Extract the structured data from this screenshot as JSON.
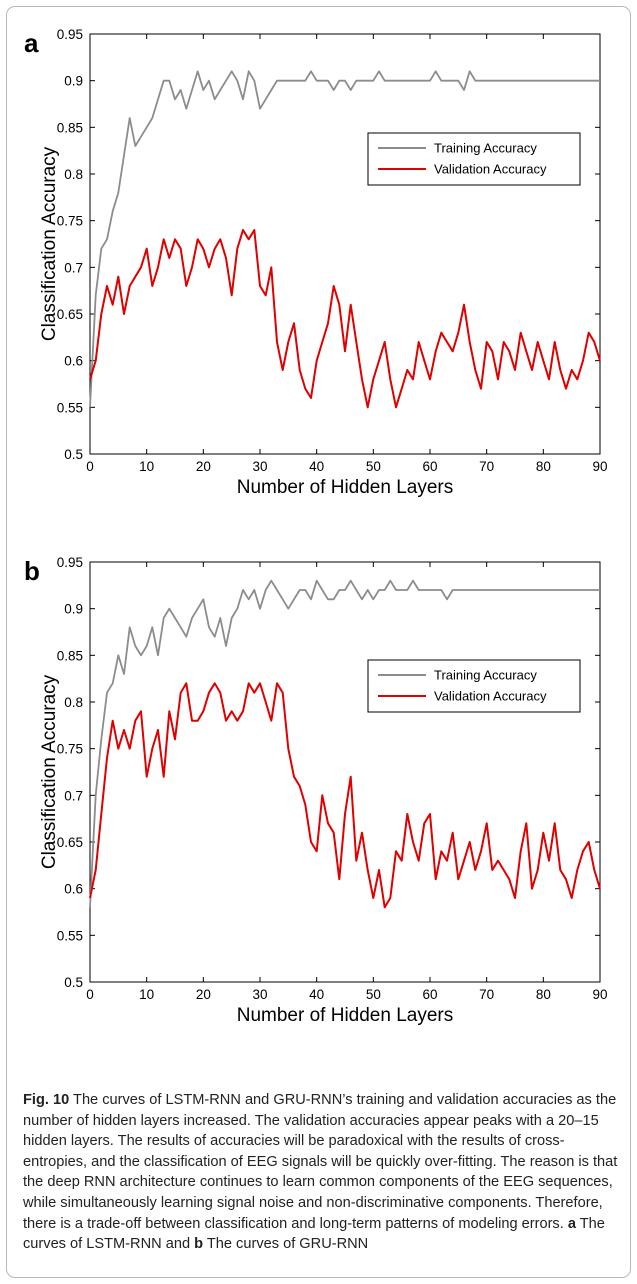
{
  "chart_data": [
    {
      "type": "line",
      "panel_label": "a",
      "title": "",
      "xlabel": "Number of Hidden Layers",
      "ylabel": "Classification Accuracy",
      "xlim": [
        0,
        90
      ],
      "ylim": [
        0.5,
        0.95
      ],
      "xticks": [
        "0",
        "10",
        "20",
        "30",
        "40",
        "50",
        "60",
        "70",
        "80",
        "90"
      ],
      "yticks": [
        "0.5",
        "0.55",
        "0.6",
        "0.65",
        "0.7",
        "0.75",
        "0.8",
        "0.85",
        "0.9",
        "0.95"
      ],
      "grid": false,
      "legend_position": "top-right",
      "series": [
        {
          "name": "Training Accuracy",
          "color": "#8c8c8c",
          "x": [
            0,
            1,
            2,
            3,
            4,
            5,
            6,
            7,
            8,
            9,
            10,
            11,
            12,
            13,
            14,
            15,
            16,
            17,
            18,
            19,
            20,
            21,
            22,
            23,
            24,
            25,
            26,
            27,
            28,
            29,
            30,
            31,
            32,
            33,
            34,
            35,
            36,
            37,
            38,
            39,
            40,
            41,
            42,
            43,
            44,
            45,
            46,
            47,
            48,
            49,
            50,
            51,
            52,
            53,
            54,
            55,
            56,
            57,
            58,
            59,
            60,
            61,
            62,
            63,
            64,
            65,
            66,
            67,
            68,
            69,
            70,
            71,
            72,
            73,
            74,
            75,
            76,
            77,
            78,
            79,
            80,
            81,
            82,
            83,
            84,
            85,
            86,
            87,
            88,
            89,
            90
          ],
          "y": [
            0.55,
            0.67,
            0.72,
            0.73,
            0.76,
            0.78,
            0.82,
            0.86,
            0.83,
            0.84,
            0.85,
            0.86,
            0.88,
            0.9,
            0.9,
            0.88,
            0.89,
            0.87,
            0.89,
            0.91,
            0.89,
            0.9,
            0.88,
            0.89,
            0.9,
            0.91,
            0.9,
            0.88,
            0.91,
            0.9,
            0.87,
            0.88,
            0.89,
            0.9,
            0.9,
            0.9,
            0.9,
            0.9,
            0.9,
            0.91,
            0.9,
            0.9,
            0.9,
            0.89,
            0.9,
            0.9,
            0.89,
            0.9,
            0.9,
            0.9,
            0.9,
            0.91,
            0.9,
            0.9,
            0.9,
            0.9,
            0.9,
            0.9,
            0.9,
            0.9,
            0.9,
            0.91,
            0.9,
            0.9,
            0.9,
            0.9,
            0.89,
            0.91,
            0.9,
            0.9,
            0.9,
            0.9,
            0.9,
            0.9,
            0.9,
            0.9,
            0.9,
            0.9,
            0.9,
            0.9,
            0.9,
            0.9,
            0.9,
            0.9,
            0.9,
            0.9,
            0.9,
            0.9,
            0.9,
            0.9,
            0.9
          ]
        },
        {
          "name": "Validation Accuracy",
          "color": "#e00000",
          "x": [
            0,
            1,
            2,
            3,
            4,
            5,
            6,
            7,
            8,
            9,
            10,
            11,
            12,
            13,
            14,
            15,
            16,
            17,
            18,
            19,
            20,
            21,
            22,
            23,
            24,
            25,
            26,
            27,
            28,
            29,
            30,
            31,
            32,
            33,
            34,
            35,
            36,
            37,
            38,
            39,
            40,
            41,
            42,
            43,
            44,
            45,
            46,
            47,
            48,
            49,
            50,
            51,
            52,
            53,
            54,
            55,
            56,
            57,
            58,
            59,
            60,
            61,
            62,
            63,
            64,
            65,
            66,
            67,
            68,
            69,
            70,
            71,
            72,
            73,
            74,
            75,
            76,
            77,
            78,
            79,
            80,
            81,
            82,
            83,
            84,
            85,
            86,
            87,
            88,
            89,
            90
          ],
          "y": [
            0.58,
            0.6,
            0.65,
            0.68,
            0.66,
            0.69,
            0.65,
            0.68,
            0.69,
            0.7,
            0.72,
            0.68,
            0.7,
            0.73,
            0.71,
            0.73,
            0.72,
            0.68,
            0.7,
            0.73,
            0.72,
            0.7,
            0.72,
            0.73,
            0.71,
            0.67,
            0.72,
            0.74,
            0.73,
            0.74,
            0.68,
            0.67,
            0.7,
            0.62,
            0.59,
            0.62,
            0.64,
            0.59,
            0.57,
            0.56,
            0.6,
            0.62,
            0.64,
            0.68,
            0.66,
            0.61,
            0.66,
            0.62,
            0.58,
            0.55,
            0.58,
            0.6,
            0.62,
            0.58,
            0.55,
            0.57,
            0.59,
            0.58,
            0.62,
            0.6,
            0.58,
            0.61,
            0.63,
            0.62,
            0.61,
            0.63,
            0.66,
            0.62,
            0.59,
            0.57,
            0.62,
            0.61,
            0.58,
            0.62,
            0.61,
            0.59,
            0.63,
            0.61,
            0.59,
            0.62,
            0.6,
            0.58,
            0.62,
            0.59,
            0.57,
            0.59,
            0.58,
            0.6,
            0.63,
            0.62,
            0.6
          ]
        }
      ]
    },
    {
      "type": "line",
      "panel_label": "b",
      "title": "",
      "xlabel": "Number of Hidden Layers",
      "ylabel": "Classification Accuracy",
      "xlim": [
        0,
        90
      ],
      "ylim": [
        0.5,
        0.95
      ],
      "xticks": [
        "0",
        "10",
        "20",
        "30",
        "40",
        "50",
        "60",
        "70",
        "80",
        "90"
      ],
      "yticks": [
        "0.5",
        "0.55",
        "0.6",
        "0.65",
        "0.7",
        "0.75",
        "0.8",
        "0.85",
        "0.9",
        "0.95"
      ],
      "grid": false,
      "legend_position": "top-right",
      "series": [
        {
          "name": "Training Accuracy",
          "color": "#8c8c8c",
          "x": [
            0,
            1,
            2,
            3,
            4,
            5,
            6,
            7,
            8,
            9,
            10,
            11,
            12,
            13,
            14,
            15,
            16,
            17,
            18,
            19,
            20,
            21,
            22,
            23,
            24,
            25,
            26,
            27,
            28,
            29,
            30,
            31,
            32,
            33,
            34,
            35,
            36,
            37,
            38,
            39,
            40,
            41,
            42,
            43,
            44,
            45,
            46,
            47,
            48,
            49,
            50,
            51,
            52,
            53,
            54,
            55,
            56,
            57,
            58,
            59,
            60,
            61,
            62,
            63,
            64,
            65,
            66,
            67,
            68,
            69,
            70,
            71,
            72,
            73,
            74,
            75,
            76,
            77,
            78,
            79,
            80,
            81,
            82,
            83,
            84,
            85,
            86,
            87,
            88,
            89,
            90
          ],
          "y": [
            0.58,
            0.7,
            0.76,
            0.81,
            0.82,
            0.85,
            0.83,
            0.88,
            0.86,
            0.85,
            0.86,
            0.88,
            0.85,
            0.89,
            0.9,
            0.89,
            0.88,
            0.87,
            0.89,
            0.9,
            0.91,
            0.88,
            0.87,
            0.89,
            0.86,
            0.89,
            0.9,
            0.92,
            0.91,
            0.92,
            0.9,
            0.92,
            0.93,
            0.92,
            0.91,
            0.9,
            0.91,
            0.92,
            0.92,
            0.91,
            0.93,
            0.92,
            0.91,
            0.91,
            0.92,
            0.92,
            0.93,
            0.92,
            0.91,
            0.92,
            0.91,
            0.92,
            0.92,
            0.93,
            0.92,
            0.92,
            0.92,
            0.93,
            0.92,
            0.92,
            0.92,
            0.92,
            0.92,
            0.91,
            0.92,
            0.92,
            0.92,
            0.92,
            0.92,
            0.92,
            0.92,
            0.92,
            0.92,
            0.92,
            0.92,
            0.92,
            0.92,
            0.92,
            0.92,
            0.92,
            0.92,
            0.92,
            0.92,
            0.92,
            0.92,
            0.92,
            0.92,
            0.92,
            0.92,
            0.92,
            0.92
          ]
        },
        {
          "name": "Validation Accuracy",
          "color": "#e00000",
          "x": [
            0,
            1,
            2,
            3,
            4,
            5,
            6,
            7,
            8,
            9,
            10,
            11,
            12,
            13,
            14,
            15,
            16,
            17,
            18,
            19,
            20,
            21,
            22,
            23,
            24,
            25,
            26,
            27,
            28,
            29,
            30,
            31,
            32,
            33,
            34,
            35,
            36,
            37,
            38,
            39,
            40,
            41,
            42,
            43,
            44,
            45,
            46,
            47,
            48,
            49,
            50,
            51,
            52,
            53,
            54,
            55,
            56,
            57,
            58,
            59,
            60,
            61,
            62,
            63,
            64,
            65,
            66,
            67,
            68,
            69,
            70,
            71,
            72,
            73,
            74,
            75,
            76,
            77,
            78,
            79,
            80,
            81,
            82,
            83,
            84,
            85,
            86,
            87,
            88,
            89,
            90
          ],
          "y": [
            0.59,
            0.62,
            0.68,
            0.74,
            0.78,
            0.75,
            0.77,
            0.75,
            0.78,
            0.79,
            0.72,
            0.75,
            0.77,
            0.72,
            0.79,
            0.76,
            0.81,
            0.82,
            0.78,
            0.78,
            0.79,
            0.81,
            0.82,
            0.81,
            0.78,
            0.79,
            0.78,
            0.79,
            0.82,
            0.81,
            0.82,
            0.8,
            0.78,
            0.82,
            0.81,
            0.75,
            0.72,
            0.71,
            0.69,
            0.65,
            0.64,
            0.7,
            0.67,
            0.66,
            0.61,
            0.68,
            0.72,
            0.63,
            0.66,
            0.62,
            0.59,
            0.62,
            0.58,
            0.59,
            0.64,
            0.63,
            0.68,
            0.65,
            0.63,
            0.67,
            0.68,
            0.61,
            0.64,
            0.63,
            0.66,
            0.61,
            0.63,
            0.65,
            0.62,
            0.64,
            0.67,
            0.62,
            0.63,
            0.62,
            0.61,
            0.59,
            0.64,
            0.67,
            0.6,
            0.62,
            0.66,
            0.63,
            0.67,
            0.62,
            0.61,
            0.59,
            0.62,
            0.64,
            0.65,
            0.62,
            0.6
          ]
        }
      ]
    }
  ],
  "caption": {
    "fig_label": "Fig. 10",
    "text": " The curves of LSTM-RNN and GRU-RNN’s training and validation accuracies as the number of hidden layers increased. The validation accuracies appear peaks with a 20–15 hidden layers. The results of accuracies will be paradoxical with the results of cross-entropies, and the classification of EEG signals will be quickly over-fitting. The reason is that the deep RNN architecture continues to learn common components of the EEG sequences, while simultaneously learning signal noise and non-discriminative components. Therefore, there is a trade-off between classification and long-term patterns of modeling errors. ",
    "label_a": "a",
    "text_a": " The curves of LSTM-RNN and ",
    "label_b": "b",
    "text_b": " The curves of GRU-RNN"
  }
}
